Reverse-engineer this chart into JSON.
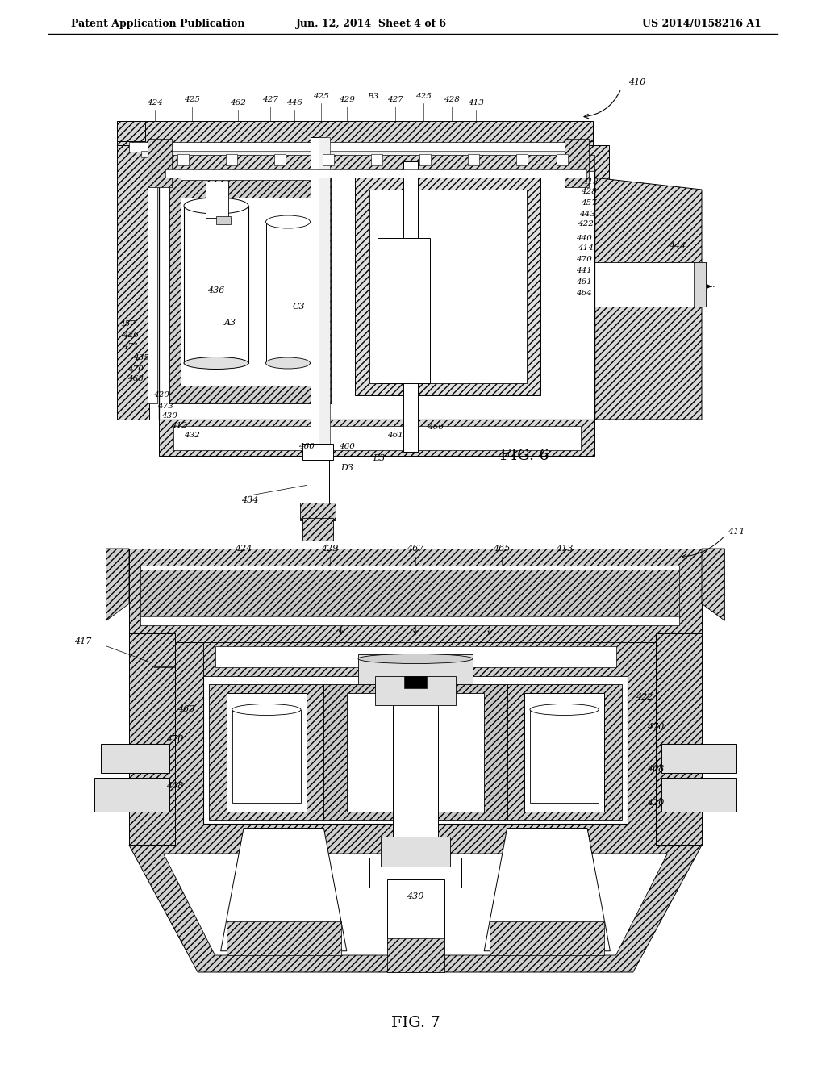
{
  "background_color": "#ffffff",
  "header_left": "Patent Application Publication",
  "header_center": "Jun. 12, 2014  Sheet 4 of 6",
  "header_right": "US 2014/0158216 A1",
  "fig6_label": "FIG. 6",
  "fig7_label": "FIG. 7",
  "page_width": 10.24,
  "page_height": 13.2,
  "dpi": 100
}
